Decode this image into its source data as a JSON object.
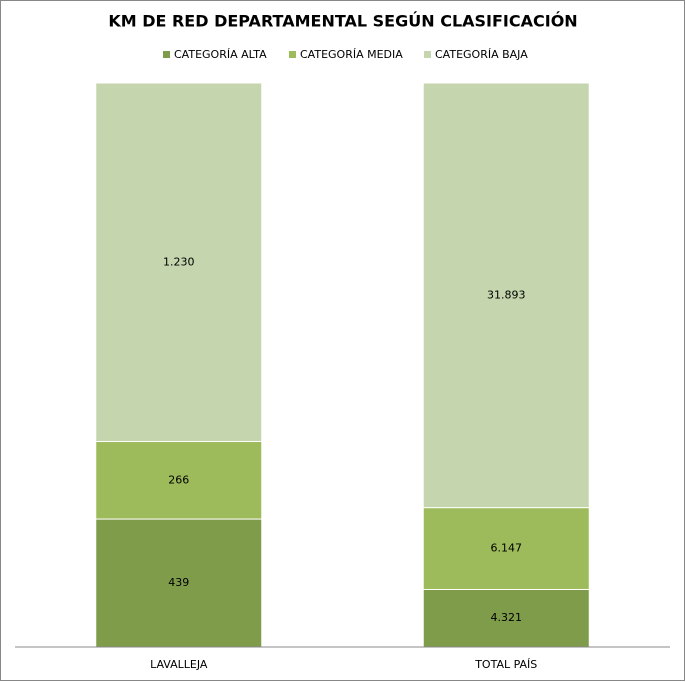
{
  "chart_data": {
    "type": "bar",
    "stacking": "percent",
    "title": "KM DE RED DEPARTAMENTAL SEGÚN CLASIFICACIÓN",
    "categories": [
      "LAVALLEJA",
      "TOTAL PAÍS"
    ],
    "series": [
      {
        "name": "CATEGORÍA ALTA",
        "color": "#7f9c4a",
        "values": [
          439,
          4321
        ],
        "value_labels": [
          "439",
          "4.321"
        ]
      },
      {
        "name": "CATEGORÍA MEDIA",
        "color": "#9dbb5a",
        "values": [
          266,
          6147
        ],
        "value_labels": [
          "266",
          "6.147"
        ]
      },
      {
        "name": "CATEGORÍA BAJA",
        "color": "#c5d6ae",
        "values": [
          1230,
          31893
        ],
        "value_labels": [
          "1.230",
          "31.893"
        ]
      }
    ],
    "legend": "top"
  }
}
